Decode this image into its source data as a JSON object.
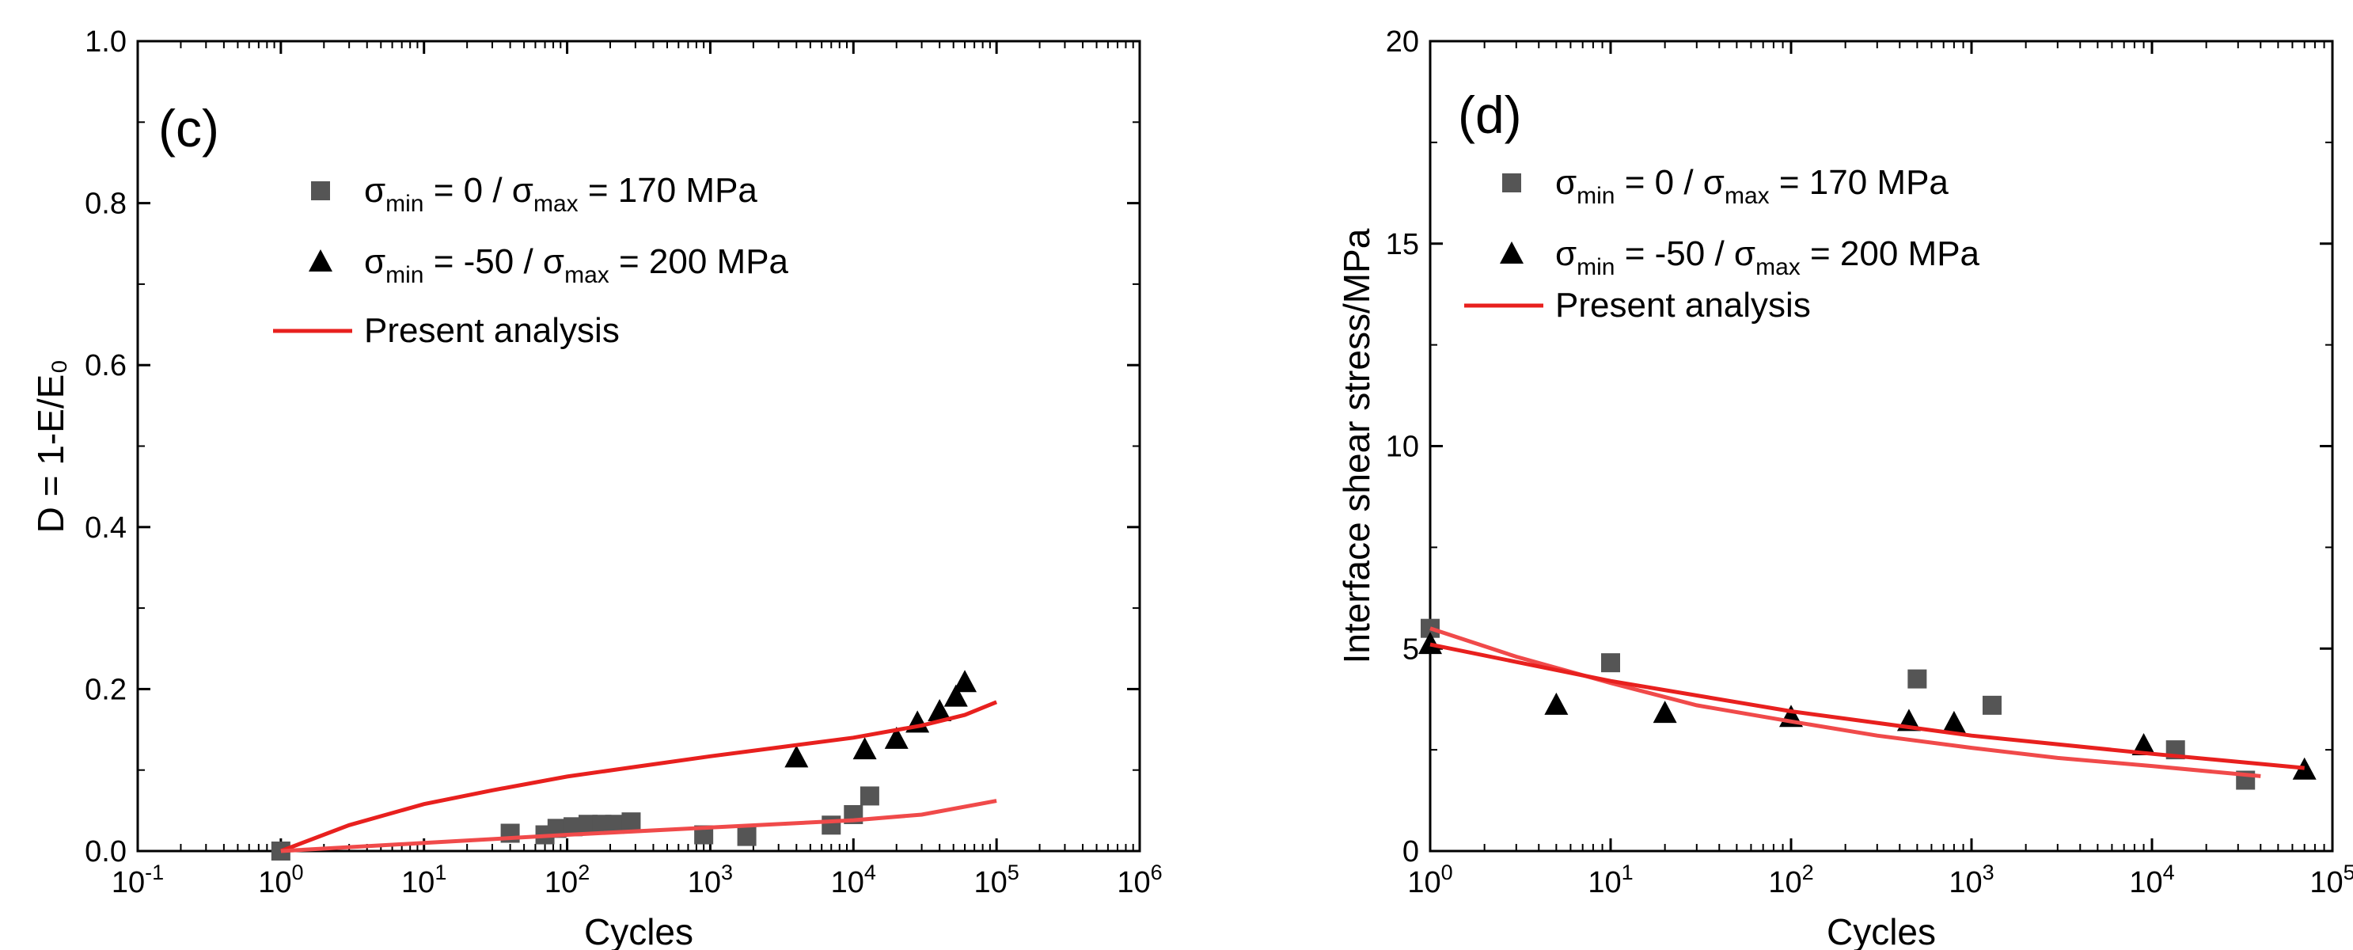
{
  "chart_data": [
    {
      "type": "scatter",
      "panel_label": "(c)",
      "x_scale": "log",
      "xlabel": "Cycles",
      "ylabel": "D = 1-E/E₀",
      "xlim": [
        0.1,
        1000000
      ],
      "ylim": [
        0,
        1.0
      ],
      "x_ticks": [
        {
          "value": 0.1,
          "base": "10",
          "exp": "-1"
        },
        {
          "value": 1,
          "base": "10",
          "exp": "0"
        },
        {
          "value": 10,
          "base": "10",
          "exp": "1"
        },
        {
          "value": 100,
          "base": "10",
          "exp": "2"
        },
        {
          "value": 1000,
          "base": "10",
          "exp": "3"
        },
        {
          "value": 10000,
          "base": "10",
          "exp": "4"
        },
        {
          "value": 100000,
          "base": "10",
          "exp": "5"
        },
        {
          "value": 1000000,
          "base": "10",
          "exp": "6"
        }
      ],
      "y_ticks": [
        {
          "value": 0,
          "label": "0.0"
        },
        {
          "value": 0.2,
          "label": "0.2"
        },
        {
          "value": 0.4,
          "label": "0.4"
        },
        {
          "value": 0.6,
          "label": "0.6"
        },
        {
          "value": 0.8,
          "label": "0.8"
        },
        {
          "value": 1.0,
          "label": "1.0"
        }
      ],
      "legend": {
        "position": "upper-left",
        "entries": [
          {
            "marker": "square",
            "parts": [
              "σ",
              "min",
              " = 0 / σ",
              "max",
              " = 170 MPa"
            ]
          },
          {
            "marker": "triangle",
            "parts": [
              "σ",
              "min",
              " = -50 / σ",
              "max",
              " = 200 MPa"
            ]
          },
          {
            "marker": "line",
            "parts": [
              "Present analysis"
            ]
          }
        ]
      },
      "series": [
        {
          "name": "σmin = 0 / σmax = 170 MPa",
          "marker": "square",
          "color": "#555555",
          "points": [
            [
              1,
              0.0
            ],
            [
              40,
              0.022
            ],
            [
              70,
              0.02
            ],
            [
              85,
              0.028
            ],
            [
              110,
              0.03
            ],
            [
              140,
              0.033
            ],
            [
              175,
              0.033
            ],
            [
              215,
              0.033
            ],
            [
              280,
              0.036
            ],
            [
              900,
              0.02
            ],
            [
              1800,
              0.018
            ],
            [
              7000,
              0.032
            ],
            [
              10000,
              0.045
            ],
            [
              13000,
              0.068
            ]
          ]
        },
        {
          "name": "σmin = -50 / σmax = 200 MPa",
          "marker": "triangle",
          "color": "#000000",
          "points": [
            [
              4000,
              0.115
            ],
            [
              12000,
              0.125
            ],
            [
              20000,
              0.138
            ],
            [
              28000,
              0.158
            ],
            [
              40000,
              0.172
            ],
            [
              52000,
              0.19
            ],
            [
              60000,
              0.208
            ]
          ]
        },
        {
          "name": "Present analysis (σmin = -50 / σmax = 200 MPa)",
          "type": "line",
          "color": "#e8201e",
          "points": [
            [
              1,
              0.0
            ],
            [
              3,
              0.032
            ],
            [
              10,
              0.058
            ],
            [
              30,
              0.075
            ],
            [
              100,
              0.092
            ],
            [
              300,
              0.104
            ],
            [
              1000,
              0.117
            ],
            [
              3000,
              0.128
            ],
            [
              10000,
              0.14
            ],
            [
              30000,
              0.155
            ],
            [
              60000,
              0.168
            ],
            [
              100000,
              0.184
            ]
          ]
        },
        {
          "name": "Present analysis (σmin = 0 / σmax = 170 MPa)",
          "type": "line",
          "color": "#f04a4a",
          "points": [
            [
              1,
              0.0
            ],
            [
              10,
              0.01
            ],
            [
              100,
              0.02
            ],
            [
              1000,
              0.029
            ],
            [
              10000,
              0.038
            ],
            [
              30000,
              0.045
            ],
            [
              100000,
              0.062
            ]
          ]
        }
      ]
    },
    {
      "type": "scatter",
      "panel_label": "(d)",
      "x_scale": "log",
      "xlabel": "Cycles",
      "ylabel": "Interface shear stress/MPa",
      "xlim": [
        1,
        100000
      ],
      "ylim": [
        0,
        20
      ],
      "x_ticks": [
        {
          "value": 1,
          "base": "10",
          "exp": "0"
        },
        {
          "value": 10,
          "base": "10",
          "exp": "1"
        },
        {
          "value": 100,
          "base": "10",
          "exp": "2"
        },
        {
          "value": 1000,
          "base": "10",
          "exp": "3"
        },
        {
          "value": 10000,
          "base": "10",
          "exp": "4"
        },
        {
          "value": 100000,
          "base": "10",
          "exp": "5"
        }
      ],
      "y_ticks": [
        {
          "value": 0,
          "label": "0"
        },
        {
          "value": 5,
          "label": "5"
        },
        {
          "value": 10,
          "label": "10"
        },
        {
          "value": 15,
          "label": "15"
        },
        {
          "value": 20,
          "label": "20"
        }
      ],
      "legend": {
        "position": "upper-left",
        "entries": [
          {
            "marker": "square",
            "parts": [
              "σ",
              "min",
              " = 0 / σ",
              "max",
              " = 170 MPa"
            ]
          },
          {
            "marker": "triangle",
            "parts": [
              "σ",
              "min",
              " = -50 / σ",
              "max",
              " = 200 MPa"
            ]
          },
          {
            "marker": "line",
            "parts": [
              "Present analysis"
            ]
          }
        ]
      },
      "series": [
        {
          "name": "σmin = 0 / σmax = 170 MPa",
          "marker": "square",
          "color": "#555555",
          "points": [
            [
              1,
              5.5
            ],
            [
              10,
              4.65
            ],
            [
              500,
              4.25
            ],
            [
              1300,
              3.6
            ],
            [
              13500,
              2.5
            ],
            [
              33000,
              1.75
            ]
          ]
        },
        {
          "name": "σmin = -50 / σmax = 200 MPa",
          "marker": "triangle",
          "color": "#000000",
          "points": [
            [
              1,
              5.1
            ],
            [
              5,
              3.6
            ],
            [
              20,
              3.4
            ],
            [
              100,
              3.3
            ],
            [
              450,
              3.2
            ],
            [
              800,
              3.15
            ],
            [
              9000,
              2.6
            ],
            [
              70000,
              2.0
            ]
          ]
        },
        {
          "name": "Present analysis (σmin = 0 / σmax = 170 MPa)",
          "type": "line",
          "color": "#f04a4a",
          "points": [
            [
              1,
              5.5
            ],
            [
              3,
              4.8
            ],
            [
              10,
              4.15
            ],
            [
              30,
              3.6
            ],
            [
              100,
              3.2
            ],
            [
              300,
              2.85
            ],
            [
              1000,
              2.55
            ],
            [
              3000,
              2.3
            ],
            [
              10000,
              2.1
            ],
            [
              40000,
              1.85
            ]
          ]
        },
        {
          "name": "Present analysis (σmin = -50 / σmax = 200 MPa)",
          "type": "line",
          "color": "#e8201e",
          "points": [
            [
              1,
              5.1
            ],
            [
              10,
              4.2
            ],
            [
              100,
              3.45
            ],
            [
              1000,
              2.85
            ],
            [
              10000,
              2.4
            ],
            [
              70000,
              2.05
            ]
          ]
        }
      ]
    }
  ]
}
